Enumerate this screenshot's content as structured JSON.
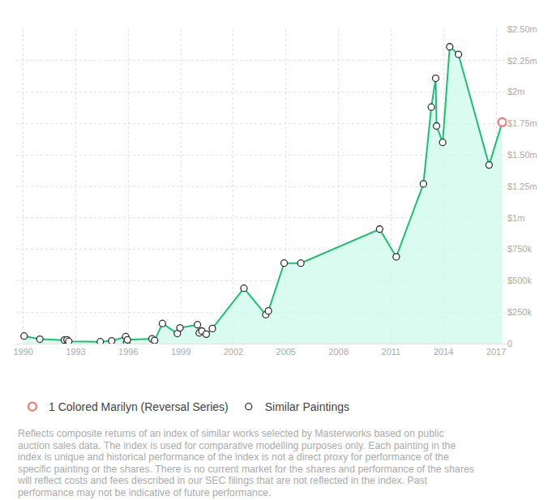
{
  "chart_data": {
    "type": "line",
    "color": "#1dbf73",
    "grid": true,
    "legend": "bottom left",
    "xlim": [
      1989.6,
      2017.6
    ],
    "xticks": [
      1990,
      1993,
      1996,
      1999,
      2002,
      2005,
      2008,
      2011,
      2014,
      2017
    ],
    "ylim": [
      0,
      2500000
    ],
    "yticks": [
      0,
      {
        "value": 250000,
        "label": "$250k"
      },
      {
        "value": 500000,
        "label": "$500k"
      },
      {
        "value": 750000,
        "label": "$750k"
      },
      {
        "value": 1000000,
        "label": "$1m"
      },
      {
        "value": 1250000,
        "label": "$1.25m"
      },
      {
        "value": 1500000,
        "label": "$1.50m"
      },
      {
        "value": 1750000,
        "label": "$1.75m"
      },
      {
        "value": 2000000,
        "label": "$2m"
      },
      {
        "value": 2250000,
        "label": "$2.25m"
      },
      {
        "value": 2500000,
        "label": "$2.50m"
      }
    ],
    "series": [
      {
        "name": "1 Colored Marilyn (Reversal Series)",
        "color": "#f08080",
        "marker": "circle",
        "x": [
          2017.35
        ],
        "values": [
          1760000
        ]
      },
      {
        "name": "Similar Paintings",
        "color": "#333333",
        "marker": "circle",
        "x": [
          1990.05,
          1990.95,
          1992.35,
          1992.5,
          1992.6,
          1994.4,
          1995.05,
          1995.85,
          1995.9,
          1995.95,
          1997.35,
          1997.5,
          1997.95,
          1998.8,
          1998.95,
          1999.95,
          2000.05,
          2000.2,
          2000.45,
          2000.8,
          2002.6,
          2003.85,
          2004.0,
          2004.9,
          2005.85,
          2010.35,
          2011.3,
          2012.85,
          2013.3,
          2013.55,
          2013.6,
          2013.95,
          2014.35,
          2014.85,
          2016.6
        ],
        "values": [
          60000,
          35000,
          28000,
          30000,
          18000,
          15000,
          22000,
          55000,
          5000,
          30000,
          38000,
          25000,
          160000,
          80000,
          125000,
          150000,
          85000,
          100000,
          75000,
          120000,
          440000,
          230000,
          260000,
          640000,
          640000,
          910000,
          690000,
          1270000,
          1880000,
          2110000,
          1730000,
          1600000,
          2360000,
          2300000,
          1420000
        ]
      }
    ],
    "footnote": [
      "Reflects composite returns of an index of similar works selected by Masterworks based on public",
      "auction sales data. The index is used for comparative modelling purposes only. Each painting in the",
      "index is unique and historical performance of the index is not a direct proxy for performance of the",
      "specific painting or the shares. There is no current market for the shares and performance of the shares",
      "will reflect costs and fees described in our SEC filings that are not reflected in the index. Past",
      "performance may not be indicative of future performance."
    ]
  }
}
